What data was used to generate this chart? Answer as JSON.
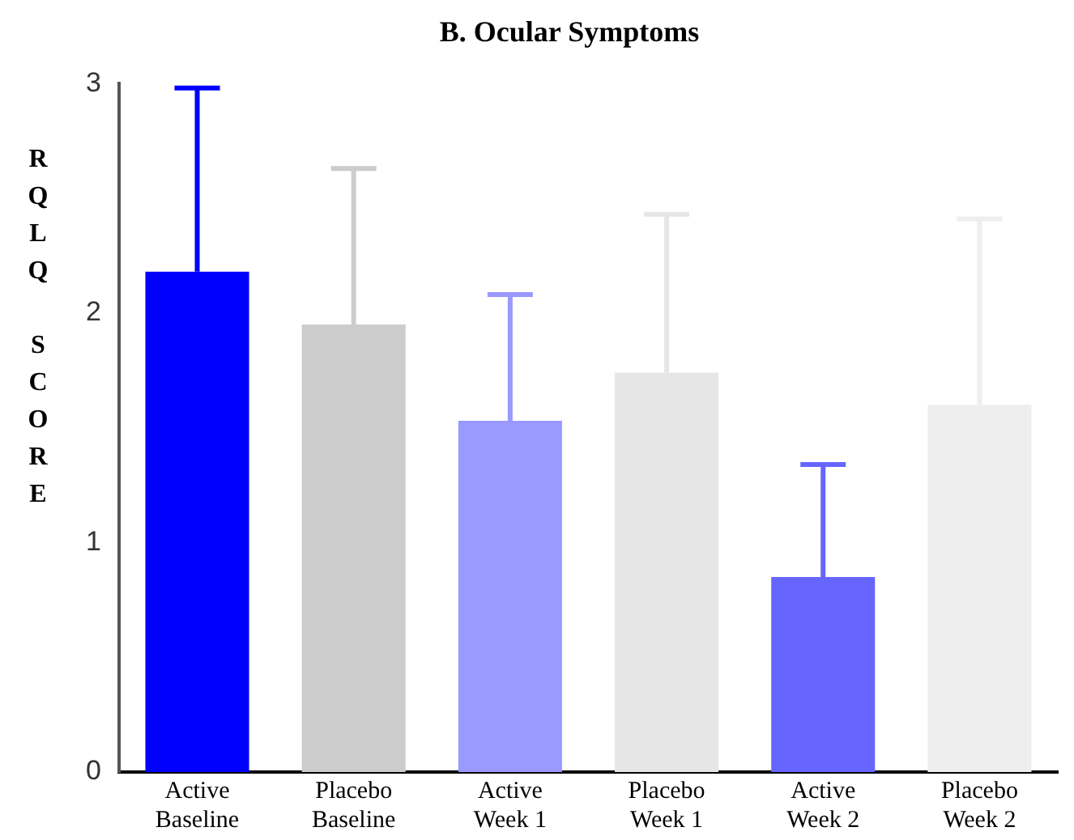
{
  "chart_data": {
    "type": "bar",
    "title": "B. Ocular Symptoms",
    "ylabel": "RQLQ SCORE",
    "categories": [
      "Active Baseline",
      "Placebo Baseline",
      "Active Week 1",
      "Placebo Week 1",
      "Active Week 2",
      "Placebo Week 2"
    ],
    "values": [
      2.18,
      1.95,
      1.53,
      1.74,
      0.85,
      1.6
    ],
    "colors": [
      "#0000ff",
      "#cccccc",
      "#9999ff",
      "#e6e6e6",
      "#6666ff",
      "#eeeeee"
    ],
    "errors": [
      [
        2.18,
        2.98
      ],
      [
        1.95,
        2.63
      ],
      [
        1.53,
        2.08
      ],
      [
        1.74,
        2.43
      ],
      [
        0.85,
        1.34
      ],
      [
        1.6,
        2.41
      ]
    ],
    "ylim": [
      0,
      3
    ],
    "yticks": [
      0,
      1,
      2,
      3
    ],
    "grid": false,
    "legend": false
  }
}
